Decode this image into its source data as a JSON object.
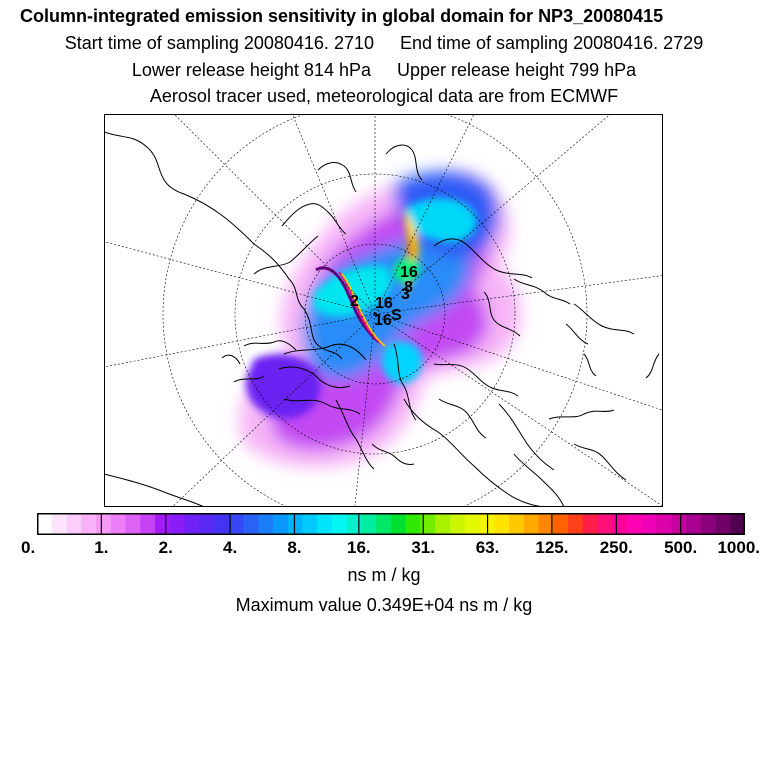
{
  "title": "Column-integrated emission sensitivity in global domain for NP3_20080415",
  "start_label": "Start time of sampling 20080416.  2710",
  "end_label": "End time of sampling 20080416.  2729",
  "lower_label": "Lower release height  814 hPa",
  "upper_label": "Upper release height  799 hPa",
  "tracer_label": "Aerosol tracer used, meteorological data are from ECMWF",
  "colorbar": {
    "ticks": [
      "0.",
      "1.",
      "2.",
      "4.",
      "8.",
      "16.",
      "31.",
      "63.",
      "125.",
      "250.",
      "500.",
      "1000."
    ],
    "colors": [
      "#ffffff",
      "#fde6fd",
      "#fbcdfb",
      "#f8b3f8",
      "#f49af6",
      "#ee7ef5",
      "#dc63f3",
      "#c542f5",
      "#a21cf6",
      "#8a1cf5",
      "#6f22f3",
      "#5a2af2",
      "#4434f2",
      "#3448f5",
      "#2a62f8",
      "#1c7df9",
      "#0a98fb",
      "#00b2fc",
      "#00cbfc",
      "#00e4fb",
      "#00f6ee",
      "#00f2cc",
      "#00ee9e",
      "#00e866",
      "#00e030",
      "#30e800",
      "#72ee00",
      "#a8f200",
      "#ccf600",
      "#e4f800",
      "#f6f400",
      "#ffe400",
      "#ffc800",
      "#ffa800",
      "#ff8600",
      "#ff6200",
      "#ff3e1a",
      "#ff1e48",
      "#ff0f7a",
      "#ff009a",
      "#ff00b2",
      "#f000b6",
      "#dd00aa",
      "#c4009e",
      "#a80090",
      "#8c007e",
      "#6e0068",
      "#520050"
    ],
    "units": "ns m / kg"
  },
  "max_label": "Maximum value  0.349E+04 ns m / kg",
  "plume_labels": [
    "2",
    "16",
    "8",
    "16",
    "3",
    "S",
    "16"
  ]
}
